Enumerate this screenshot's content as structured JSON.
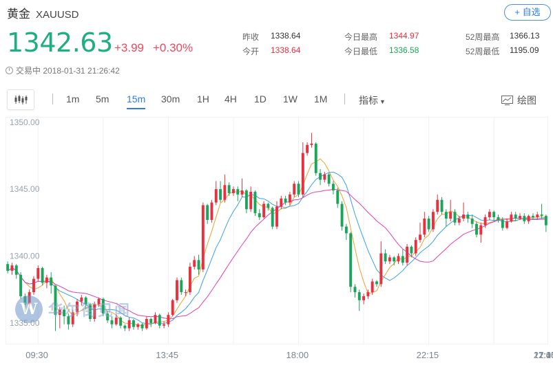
{
  "header": {
    "name": "黄金",
    "code": "XAUUSD",
    "add_label": "+ 自选",
    "price": "1342.63",
    "change": "+3.99",
    "change_pct": "+0.30%",
    "status": "交易中 2018-01-31 21:26:42"
  },
  "stats": {
    "prev_close_label": "昨收",
    "prev_close": "1338.64",
    "open_label": "今开",
    "open": "1338.64",
    "high_label": "今日最高",
    "high": "1344.97",
    "low_label": "今日最低",
    "low": "1336.58",
    "w52_high_label": "52周最高",
    "w52_high": "1366.13",
    "w52_low_label": "52周最低",
    "w52_low": "1195.09"
  },
  "toolbar": {
    "periods": [
      "1m",
      "5m",
      "15m",
      "30m",
      "1H",
      "4H",
      "1D",
      "1W",
      "1M"
    ],
    "active_period": "15m",
    "indicator_label": "指标",
    "draw_label": "绘图"
  },
  "watermark": {
    "logo_letter": "W",
    "text": "华尔街见闻"
  },
  "colors": {
    "up": "#e8303f",
    "down": "#1aa55a",
    "price": "#1fae7d",
    "ma_short": "#f0a030",
    "ma_mid": "#3aa0e8",
    "ma_long": "#e040b0",
    "accent": "#2b7de9"
  },
  "chart_data": {
    "type": "candlestick",
    "title": "",
    "y_ticks": [
      "1350.00",
      "1345.00",
      "1340.00",
      "1335.00"
    ],
    "x_ticks": [
      "09:30",
      "13:45",
      "18:00",
      "22:15",
      "12:45",
      "17:00",
      "21:15"
    ],
    "ylim": [
      1333.4,
      1350.4
    ],
    "grid": "vertical",
    "candles": [
      [
        1339.4,
        1338.9,
        1339.6,
        1338.7
      ],
      [
        1338.9,
        1339.3,
        1339.5,
        1338.6
      ],
      [
        1339.3,
        1338.6,
        1339.4,
        1338.3
      ],
      [
        1338.6,
        1337.0,
        1338.8,
        1336.8
      ],
      [
        1337.0,
        1336.4,
        1337.2,
        1335.8
      ],
      [
        1336.4,
        1337.3,
        1337.5,
        1336.2
      ],
      [
        1337.3,
        1338.3,
        1338.5,
        1337.1
      ],
      [
        1338.3,
        1339.1,
        1339.3,
        1338.1
      ],
      [
        1339.1,
        1338.0,
        1339.2,
        1337.8
      ],
      [
        1338.0,
        1338.4,
        1338.6,
        1337.6
      ],
      [
        1338.4,
        1337.8,
        1338.8,
        1337.2
      ],
      [
        1337.8,
        1335.6,
        1337.8,
        1334.4
      ],
      [
        1335.6,
        1336.0,
        1336.2,
        1334.6
      ],
      [
        1336.0,
        1335.5,
        1336.3,
        1334.9
      ],
      [
        1335.5,
        1334.9,
        1335.7,
        1334.5
      ],
      [
        1334.9,
        1335.8,
        1336.0,
        1334.7
      ],
      [
        1335.8,
        1336.6,
        1336.8,
        1335.5
      ],
      [
        1336.6,
        1336.9,
        1337.1,
        1336.3
      ],
      [
        1336.9,
        1336.4,
        1337.0,
        1336.0
      ],
      [
        1336.4,
        1335.3,
        1336.5,
        1335.1
      ],
      [
        1335.3,
        1336.4,
        1336.6,
        1335.1
      ],
      [
        1336.4,
        1336.8,
        1336.9,
        1336.2
      ],
      [
        1336.8,
        1335.7,
        1336.9,
        1335.5
      ],
      [
        1335.7,
        1335.2,
        1335.9,
        1335.0
      ],
      [
        1335.2,
        1334.9,
        1335.5,
        1334.6
      ],
      [
        1334.9,
        1335.4,
        1335.6,
        1334.8
      ],
      [
        1335.4,
        1334.8,
        1335.5,
        1334.6
      ],
      [
        1334.8,
        1334.6,
        1334.9,
        1334.4
      ],
      [
        1334.6,
        1335.2,
        1335.4,
        1334.4
      ],
      [
        1335.2,
        1334.7,
        1335.3,
        1334.5
      ],
      [
        1334.7,
        1334.9,
        1335.0,
        1334.5
      ],
      [
        1334.9,
        1334.6,
        1335.0,
        1334.4
      ],
      [
        1334.6,
        1335.3,
        1335.5,
        1334.5
      ],
      [
        1335.3,
        1335.0,
        1335.4,
        1334.7
      ],
      [
        1335.0,
        1335.6,
        1335.8,
        1334.9
      ],
      [
        1335.6,
        1334.8,
        1335.7,
        1334.6
      ],
      [
        1334.8,
        1334.9,
        1335.1,
        1334.6
      ],
      [
        1334.9,
        1335.6,
        1335.8,
        1334.7
      ],
      [
        1335.6,
        1336.7,
        1336.8,
        1335.5
      ],
      [
        1336.7,
        1338.2,
        1338.4,
        1336.5
      ],
      [
        1338.2,
        1337.3,
        1338.4,
        1337.1
      ],
      [
        1337.3,
        1337.3,
        1337.5,
        1337.0
      ],
      [
        1337.3,
        1339.2,
        1339.5,
        1337.1
      ],
      [
        1339.2,
        1339.7,
        1340.0,
        1339.0
      ],
      [
        1339.7,
        1339.0,
        1340.1,
        1338.6
      ],
      [
        1339.0,
        1343.8,
        1344.0,
        1338.8
      ],
      [
        1343.8,
        1342.7,
        1343.9,
        1342.4
      ],
      [
        1342.7,
        1344.0,
        1344.2,
        1342.5
      ],
      [
        1344.0,
        1345.0,
        1345.6,
        1343.8
      ],
      [
        1345.0,
        1344.2,
        1345.6,
        1344.0
      ],
      [
        1344.2,
        1345.3,
        1346.1,
        1344.0
      ],
      [
        1345.3,
        1344.7,
        1345.5,
        1344.5
      ],
      [
        1344.7,
        1345.0,
        1345.2,
        1344.5
      ],
      [
        1345.0,
        1344.6,
        1345.2,
        1344.1
      ],
      [
        1344.6,
        1344.9,
        1345.8,
        1344.4
      ],
      [
        1344.9,
        1343.5,
        1345.0,
        1343.2
      ],
      [
        1343.5,
        1344.8,
        1345.2,
        1343.3
      ],
      [
        1344.8,
        1343.2,
        1344.9,
        1343.0
      ],
      [
        1343.2,
        1342.9,
        1343.5,
        1342.7
      ],
      [
        1342.9,
        1343.9,
        1344.1,
        1342.8
      ],
      [
        1343.9,
        1343.6,
        1344.0,
        1343.4
      ],
      [
        1343.6,
        1342.2,
        1343.7,
        1342.0
      ],
      [
        1342.2,
        1343.7,
        1344.1,
        1342.0
      ],
      [
        1343.7,
        1344.3,
        1344.5,
        1343.5
      ],
      [
        1344.3,
        1344.0,
        1344.5,
        1343.8
      ],
      [
        1344.0,
        1344.6,
        1344.8,
        1343.8
      ],
      [
        1344.6,
        1345.4,
        1345.6,
        1344.4
      ],
      [
        1345.4,
        1344.6,
        1345.6,
        1344.4
      ],
      [
        1344.6,
        1347.7,
        1348.5,
        1344.4
      ],
      [
        1347.7,
        1348.3,
        1348.5,
        1347.5
      ],
      [
        1348.3,
        1348.4,
        1349.2,
        1348.1
      ],
      [
        1348.4,
        1346.2,
        1348.5,
        1346.0
      ],
      [
        1346.2,
        1345.7,
        1346.5,
        1345.3
      ],
      [
        1345.7,
        1346.1,
        1346.3,
        1345.5
      ],
      [
        1346.1,
        1345.4,
        1346.2,
        1345.2
      ],
      [
        1345.4,
        1344.9,
        1345.6,
        1344.6
      ],
      [
        1344.9,
        1343.9,
        1345.1,
        1343.6
      ],
      [
        1343.9,
        1342.2,
        1344.1,
        1341.9
      ],
      [
        1342.2,
        1341.7,
        1342.4,
        1341.2
      ],
      [
        1341.7,
        1337.7,
        1341.8,
        1337.3
      ],
      [
        1337.7,
        1337.3,
        1337.9,
        1336.9
      ],
      [
        1337.3,
        1336.7,
        1337.5,
        1335.9
      ],
      [
        1336.7,
        1337.0,
        1337.2,
        1336.4
      ],
      [
        1337.0,
        1337.3,
        1337.5,
        1336.8
      ],
      [
        1337.3,
        1338.1,
        1338.3,
        1337.1
      ],
      [
        1338.1,
        1337.9,
        1338.2,
        1337.7
      ],
      [
        1337.9,
        1340.2,
        1341.1,
        1337.7
      ],
      [
        1340.2,
        1339.6,
        1340.5,
        1339.4
      ],
      [
        1339.6,
        1339.9,
        1340.1,
        1339.4
      ],
      [
        1339.9,
        1339.6,
        1340.0,
        1339.3
      ],
      [
        1339.6,
        1340.0,
        1340.2,
        1339.4
      ],
      [
        1340.0,
        1339.5,
        1340.5,
        1339.3
      ],
      [
        1339.5,
        1340.7,
        1340.9,
        1339.3
      ],
      [
        1340.7,
        1340.2,
        1340.8,
        1339.9
      ],
      [
        1340.2,
        1341.2,
        1341.4,
        1340.0
      ],
      [
        1341.2,
        1341.6,
        1342.5,
        1341.0
      ],
      [
        1341.6,
        1342.8,
        1343.3,
        1341.4
      ],
      [
        1342.8,
        1342.0,
        1343.0,
        1341.8
      ],
      [
        1342.0,
        1343.3,
        1343.5,
        1341.8
      ],
      [
        1343.3,
        1344.2,
        1344.6,
        1343.1
      ],
      [
        1344.2,
        1343.3,
        1344.4,
        1343.1
      ],
      [
        1343.3,
        1342.8,
        1343.5,
        1342.2
      ],
      [
        1342.8,
        1343.3,
        1344.2,
        1342.6
      ],
      [
        1343.3,
        1342.5,
        1343.5,
        1342.3
      ],
      [
        1342.5,
        1342.8,
        1343.0,
        1342.3
      ],
      [
        1342.8,
        1343.1,
        1344.0,
        1342.6
      ],
      [
        1343.1,
        1342.8,
        1343.3,
        1342.5
      ],
      [
        1342.8,
        1342.4,
        1343.1,
        1342.1
      ],
      [
        1342.4,
        1341.6,
        1342.6,
        1341.4
      ],
      [
        1341.6,
        1342.3,
        1342.5,
        1341.0
      ],
      [
        1342.3,
        1342.9,
        1343.1,
        1342.1
      ],
      [
        1342.9,
        1343.3,
        1343.5,
        1342.7
      ],
      [
        1343.3,
        1342.9,
        1343.4,
        1342.6
      ],
      [
        1342.9,
        1342.7,
        1343.1,
        1342.5
      ],
      [
        1342.7,
        1342.1,
        1342.9,
        1341.9
      ],
      [
        1342.1,
        1342.6,
        1342.8,
        1342.0
      ],
      [
        1342.6,
        1343.1,
        1343.3,
        1342.5
      ],
      [
        1343.1,
        1342.8,
        1343.3,
        1342.6
      ],
      [
        1342.8,
        1343.0,
        1343.2,
        1342.7
      ],
      [
        1343.0,
        1342.6,
        1343.2,
        1342.4
      ],
      [
        1342.6,
        1343.0,
        1343.1,
        1342.4
      ],
      [
        1343.0,
        1342.9,
        1343.2,
        1342.7
      ],
      [
        1342.9,
        1343.1,
        1343.3,
        1342.7
      ],
      [
        1343.1,
        1343.0,
        1343.9,
        1342.8
      ],
      [
        1343.0,
        1342.3,
        1343.1,
        1341.8
      ]
    ]
  }
}
